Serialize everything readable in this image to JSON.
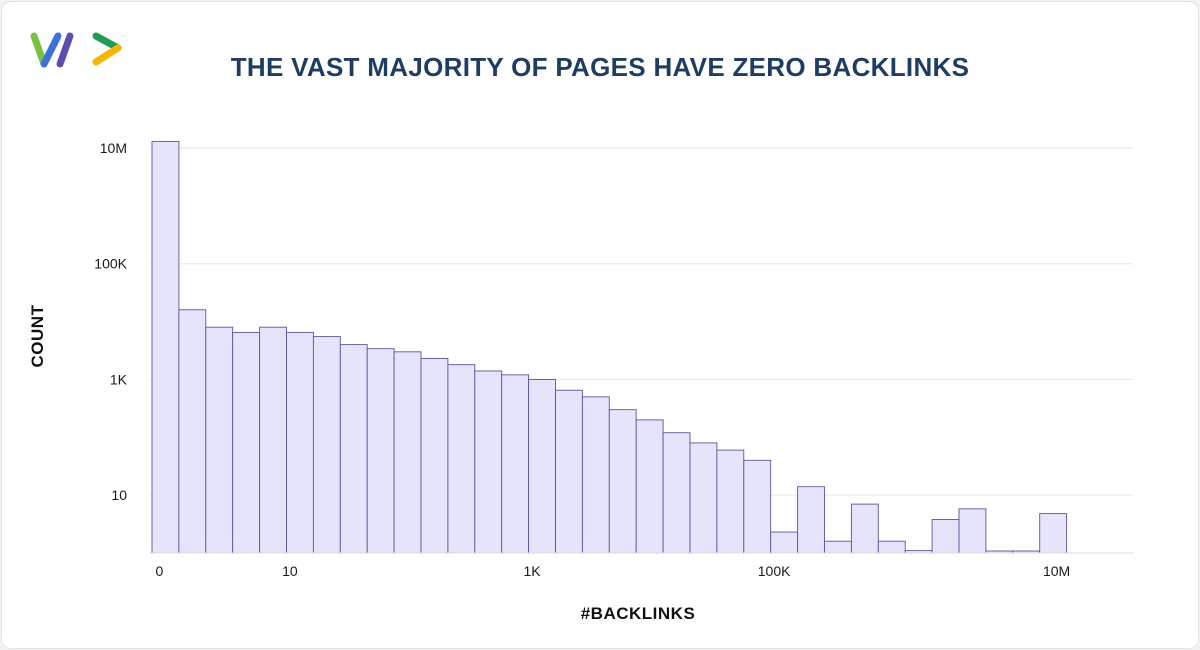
{
  "header": {
    "title": "THE VAST MAJORITY OF PAGES HAVE ZERO BACKLINKS"
  },
  "logo": {
    "icon": "brand-logo-icon",
    "colors": [
      "#7ac143",
      "#3f6fd8",
      "#5a4fb0",
      "#f2b705",
      "#1f9d55"
    ]
  },
  "colors": {
    "bar_fill": "#e6e4fb",
    "bar_stroke": "#5b5699",
    "grid": "#e6e6ea",
    "title": "#1f3d63"
  },
  "chart_data": {
    "type": "bar",
    "xlabel": "#BACKLINKS",
    "ylabel": "COUNT",
    "yscale": "log",
    "ylim": [
      1,
      10000000
    ],
    "y_ticks": [
      {
        "value": 10,
        "label": "10"
      },
      {
        "value": 1000,
        "label": "1K"
      },
      {
        "value": 100000,
        "label": "100K"
      },
      {
        "value": 10000000,
        "label": "10M"
      }
    ],
    "x_ticks": [
      {
        "bin": 0,
        "label": "0"
      },
      {
        "bin": 4.85,
        "label": "10"
      },
      {
        "bin": 13.85,
        "label": "1K"
      },
      {
        "bin": 22.85,
        "label": "100K"
      },
      {
        "bin": 33.35,
        "label": "10M"
      }
    ],
    "values": [
      13000000,
      16000,
      8000,
      6500,
      8000,
      6500,
      5500,
      4000,
      3400,
      3000,
      2300,
      1800,
      1400,
      1200,
      1000,
      650,
      500,
      300,
      200,
      120,
      80,
      60,
      40,
      2.3,
      14,
      1.6,
      7,
      1.6,
      1.1,
      3.8,
      5.8,
      0.55,
      0.55,
      4.8
    ],
    "grid": true,
    "legend": "none"
  }
}
